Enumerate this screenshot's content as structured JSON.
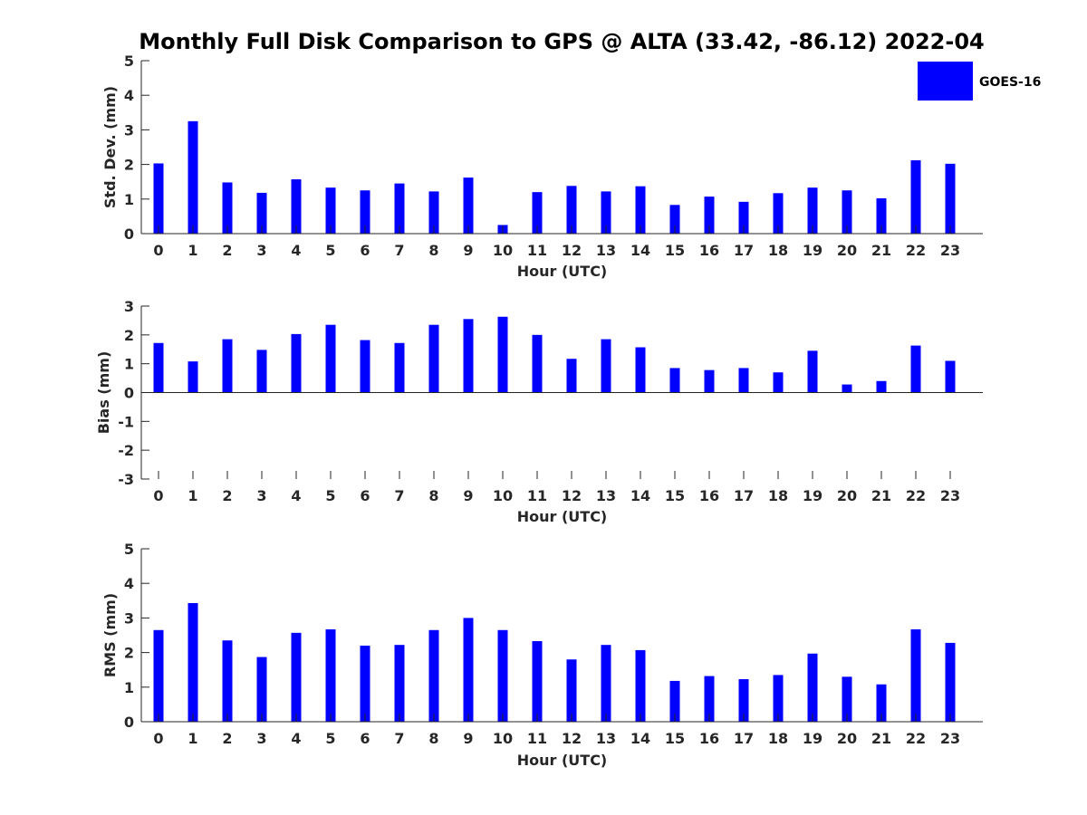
{
  "title": "Monthly Full Disk Comparison to GPS @ ALTA (33.42, -86.12) 2022-04",
  "legend": {
    "label": "GOES-16",
    "color": "#0000ff",
    "placement": "top-right"
  },
  "chart_data": [
    {
      "type": "bar",
      "xlabel": "Hour (UTC)",
      "ylabel": "Std. Dev. (mm)",
      "ylim": [
        0,
        5
      ],
      "yticks": [
        0,
        1,
        2,
        3,
        4,
        5
      ],
      "categories": [
        "0",
        "1",
        "2",
        "3",
        "4",
        "5",
        "6",
        "7",
        "8",
        "9",
        "10",
        "11",
        "12",
        "13",
        "14",
        "15",
        "16",
        "17",
        "18",
        "19",
        "20",
        "21",
        "22",
        "23"
      ],
      "series": [
        {
          "name": "GOES-16",
          "values": [
            2.03,
            3.25,
            1.48,
            1.18,
            1.57,
            1.33,
            1.25,
            1.45,
            1.22,
            1.62,
            0.25,
            1.2,
            1.38,
            1.22,
            1.37,
            0.83,
            1.07,
            0.92,
            1.17,
            1.33,
            1.25,
            1.02,
            2.12,
            2.02
          ]
        }
      ]
    },
    {
      "type": "bar",
      "xlabel": "Hour (UTC)",
      "ylabel": "Bias (mm)",
      "ylim": [
        -3,
        3
      ],
      "yticks": [
        -3,
        -2,
        -1,
        0,
        1,
        2,
        3
      ],
      "categories": [
        "0",
        "1",
        "2",
        "3",
        "4",
        "5",
        "6",
        "7",
        "8",
        "9",
        "10",
        "11",
        "12",
        "13",
        "14",
        "15",
        "16",
        "17",
        "18",
        "19",
        "20",
        "21",
        "22",
        "23"
      ],
      "series": [
        {
          "name": "GOES-16",
          "values": [
            1.72,
            1.08,
            1.85,
            1.48,
            2.03,
            2.35,
            1.82,
            1.72,
            2.35,
            2.55,
            2.63,
            2.0,
            1.17,
            1.85,
            1.57,
            0.85,
            0.78,
            0.85,
            0.7,
            1.45,
            0.28,
            0.4,
            1.63,
            1.1
          ]
        }
      ]
    },
    {
      "type": "bar",
      "xlabel": "Hour (UTC)",
      "ylabel": "RMS (mm)",
      "ylim": [
        0,
        5
      ],
      "yticks": [
        0,
        1,
        2,
        3,
        4,
        5
      ],
      "categories": [
        "0",
        "1",
        "2",
        "3",
        "4",
        "5",
        "6",
        "7",
        "8",
        "9",
        "10",
        "11",
        "12",
        "13",
        "14",
        "15",
        "16",
        "17",
        "18",
        "19",
        "20",
        "21",
        "22",
        "23"
      ],
      "series": [
        {
          "name": "GOES-16",
          "values": [
            2.65,
            3.43,
            2.35,
            1.87,
            2.57,
            2.67,
            2.2,
            2.22,
            2.65,
            3.0,
            2.65,
            2.33,
            1.8,
            2.22,
            2.07,
            1.18,
            1.32,
            1.23,
            1.35,
            1.97,
            1.3,
            1.08,
            2.67,
            2.28
          ]
        }
      ]
    }
  ]
}
